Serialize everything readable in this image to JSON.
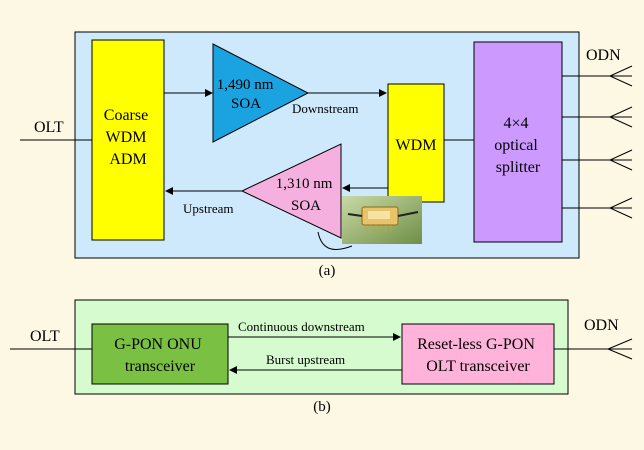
{
  "colors": {
    "background": "#fdf8e4",
    "panel_a_fill": "#cde9fb",
    "panel_b_fill": "#d6fbcf",
    "wdm_fill": "#ffff00",
    "soa_1490_fill": "#1aa3e0",
    "soa_1310_fill": "#f5b0e0",
    "splitter_fill": "#cc99ff",
    "onu_fill": "#7ac143",
    "olt_transceiver_fill": "#ffb3da",
    "line": "#000000"
  },
  "panel_a": {
    "caption": "(a)",
    "olt_label": "OLT",
    "odn_label": "ODN",
    "cwdm_adm": [
      "Coarse",
      "WDM",
      "ADM"
    ],
    "soa_1490": [
      "1,490 nm",
      "SOA"
    ],
    "soa_1310": [
      "1,310 nm",
      "SOA"
    ],
    "wdm_label": "WDM",
    "splitter": [
      "4×4",
      "optical",
      "splitter"
    ],
    "downstream_label": "Downstream",
    "upstream_label": "Upstream",
    "photo_icon": "soa-module-photo-icon"
  },
  "panel_b": {
    "caption": "(b)",
    "olt_label": "OLT",
    "odn_label": "ODN",
    "onu_transceiver": [
      "G-PON ONU",
      "transceiver"
    ],
    "olt_transceiver": [
      "Reset-less G-PON",
      "OLT transceiver"
    ],
    "continuous_label": "Continuous downstream",
    "burst_label": "Burst upstream"
  }
}
